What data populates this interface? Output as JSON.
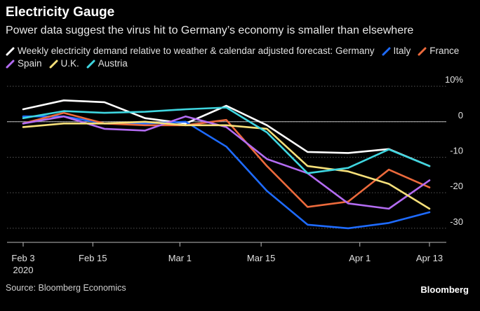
{
  "title": "Electricity Gauge",
  "subtitle": "Power data suggest the virus hit to Germany’s economy is smaller than elsewhere",
  "source": "Source: Bloomberg Economics",
  "brand": "Bloomberg",
  "chart_data": {
    "type": "line",
    "legend_prefix": "Weekly electricity demand relative to weather & calendar adjusted forecast:",
    "legend_placement": "top-left",
    "x": [
      "2020-02-03",
      "2020-02-10",
      "2020-02-17",
      "2020-02-24",
      "2020-03-02",
      "2020-03-09",
      "2020-03-16",
      "2020-03-23",
      "2020-03-30",
      "2020-04-06",
      "2020-04-13"
    ],
    "x_ticks": [
      {
        "date": "2020-02-03",
        "label": "Feb 3",
        "sublabel": "2020"
      },
      {
        "date": "2020-02-15",
        "label": "Feb 15",
        "sublabel": ""
      },
      {
        "date": "2020-03-01",
        "label": "Mar 1",
        "sublabel": ""
      },
      {
        "date": "2020-03-15",
        "label": "Mar 15",
        "sublabel": ""
      },
      {
        "date": "2020-04-01",
        "label": "Apr 1",
        "sublabel": ""
      },
      {
        "date": "2020-04-13",
        "label": "Apr 13",
        "sublabel": ""
      }
    ],
    "y_ticks": [
      {
        "value": 10,
        "label": "10%"
      },
      {
        "value": 0,
        "label": "0"
      },
      {
        "value": -10,
        "label": "-10"
      },
      {
        "value": -20,
        "label": "-20"
      },
      {
        "value": -30,
        "label": "-30"
      }
    ],
    "ylim": [
      -32,
      11
    ],
    "grid": true,
    "series": [
      {
        "name": "Germany",
        "color": "#ffffff",
        "dates": [
          "2020-02-03",
          "2020-02-10",
          "2020-02-17",
          "2020-02-24",
          "2020-03-02",
          "2020-03-09",
          "2020-03-16",
          "2020-03-23",
          "2020-03-30",
          "2020-04-06",
          "2020-04-13"
        ],
        "values": [
          3.5,
          6.0,
          5.5,
          1.0,
          -0.5,
          4.5,
          -1.0,
          -8.5,
          -8.8,
          -7.7,
          -12.5
        ]
      },
      {
        "name": "Italy",
        "color": "#1e6bff",
        "dates": [
          "2020-02-03",
          "2020-02-10",
          "2020-02-17",
          "2020-02-24",
          "2020-03-02",
          "2020-03-09",
          "2020-03-16",
          "2020-03-23",
          "2020-03-30",
          "2020-04-06",
          "2020-04-13"
        ],
        "values": [
          1.5,
          1.5,
          -0.5,
          -0.5,
          0.0,
          -7.0,
          -19.5,
          -29.0,
          -30.0,
          -28.5,
          -25.5
        ]
      },
      {
        "name": "France",
        "color": "#ec6a3c",
        "dates": [
          "2020-02-03",
          "2020-02-10",
          "2020-02-17",
          "2020-02-24",
          "2020-03-02",
          "2020-03-09",
          "2020-03-16",
          "2020-03-23",
          "2020-03-30",
          "2020-04-06",
          "2020-04-13"
        ],
        "values": [
          -0.5,
          2.5,
          -0.5,
          -1.0,
          -1.0,
          0.5,
          -12.5,
          -24.0,
          -22.5,
          -13.5,
          -18.5
        ]
      },
      {
        "name": "Spain",
        "color": "#b36cf2",
        "dates": [
          "2020-02-03",
          "2020-02-10",
          "2020-02-17",
          "2020-02-24",
          "2020-03-02",
          "2020-03-09",
          "2020-03-16",
          "2020-03-23",
          "2020-03-30",
          "2020-04-06",
          "2020-04-13"
        ],
        "values": [
          -0.5,
          1.5,
          -2.0,
          -2.5,
          1.5,
          -1.5,
          -10.5,
          -14.5,
          -23.0,
          -24.5,
          -16.5
        ]
      },
      {
        "name": "U.K.",
        "color": "#f7e07a",
        "dates": [
          "2020-02-03",
          "2020-02-10",
          "2020-02-17",
          "2020-02-24",
          "2020-03-02",
          "2020-03-09",
          "2020-03-16",
          "2020-03-23",
          "2020-03-30",
          "2020-04-06",
          "2020-04-13"
        ],
        "values": [
          -1.5,
          -0.5,
          -0.5,
          0.0,
          -1.0,
          -1.0,
          -2.0,
          -12.5,
          -14.0,
          -17.5,
          -24.5
        ]
      },
      {
        "name": "Austria",
        "color": "#3fd6e0",
        "dates": [
          "2020-02-03",
          "2020-02-10",
          "2020-02-17",
          "2020-02-24",
          "2020-03-02",
          "2020-03-09",
          "2020-03-16",
          "2020-03-23",
          "2020-03-30",
          "2020-04-06",
          "2020-04-13"
        ],
        "values": [
          1.0,
          3.0,
          2.5,
          2.8,
          3.5,
          4.0,
          -3.0,
          -14.5,
          -13.0,
          -7.8,
          -12.5
        ]
      }
    ]
  }
}
